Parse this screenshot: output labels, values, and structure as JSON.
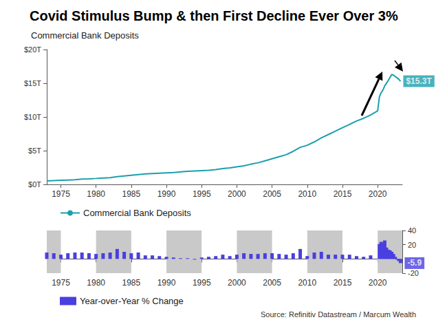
{
  "chart_data": [
    {
      "type": "line",
      "title": "Covid Stimulus Bump & then First Decline Ever Over 3%",
      "subtitle": "Commercial Bank Deposits",
      "x": [
        1973,
        1974,
        1975,
        1976,
        1977,
        1978,
        1979,
        1980,
        1981,
        1982,
        1983,
        1984,
        1985,
        1986,
        1987,
        1988,
        1989,
        1990,
        1991,
        1992,
        1993,
        1994,
        1995,
        1996,
        1997,
        1998,
        1999,
        2000,
        2001,
        2002,
        2003,
        2004,
        2005,
        2006,
        2007,
        2008,
        2009,
        2010,
        2011,
        2012,
        2013,
        2014,
        2015,
        2016,
        2017,
        2018,
        2019,
        2020,
        2020.25,
        2020.5,
        2020.75,
        2021,
        2021.5,
        2022,
        2022.25,
        2022.5,
        2022.75,
        2023,
        2023.25
      ],
      "series": [
        {
          "name": "Commercial Bank Deposits",
          "color": "#1a9fad",
          "values": [
            0.5,
            0.55,
            0.6,
            0.65,
            0.7,
            0.78,
            0.82,
            0.88,
            0.95,
            1.0,
            1.15,
            1.25,
            1.35,
            1.45,
            1.55,
            1.6,
            1.65,
            1.7,
            1.75,
            1.85,
            1.95,
            2.0,
            2.05,
            2.1,
            2.2,
            2.35,
            2.45,
            2.6,
            2.75,
            3.0,
            3.2,
            3.5,
            3.8,
            4.1,
            4.4,
            4.9,
            5.5,
            5.8,
            6.3,
            6.9,
            7.4,
            7.9,
            8.4,
            8.9,
            9.4,
            9.8,
            10.3,
            10.9,
            13.0,
            13.6,
            14.0,
            14.6,
            15.4,
            16.3,
            16.2,
            16.0,
            15.8,
            15.6,
            15.3
          ]
        }
      ],
      "xlim": [
        1973,
        2023.5
      ],
      "xticks": [
        1975,
        1980,
        1985,
        1990,
        1995,
        2000,
        2005,
        2010,
        2015,
        2020
      ],
      "ylim": [
        0,
        20
      ],
      "yticks": [
        {
          "value": 0,
          "label": "$0T"
        },
        {
          "value": 5,
          "label": "$5T"
        },
        {
          "value": 10,
          "label": "$10T"
        },
        {
          "value": 15,
          "label": "$15T"
        },
        {
          "value": 20,
          "label": "$20T"
        }
      ],
      "annotations": [
        {
          "text": "$15.3T",
          "x": 2023.25,
          "y": 15.3
        }
      ],
      "grid": false,
      "legend": "bottom-left"
    },
    {
      "type": "bar",
      "x": [
        1973,
        1974,
        1975,
        1976,
        1977,
        1978,
        1979,
        1980,
        1981,
        1982,
        1983,
        1984,
        1985,
        1986,
        1987,
        1988,
        1989,
        1990,
        1991,
        1992,
        1993,
        1994,
        1995,
        1996,
        1997,
        1998,
        1999,
        2000,
        2001,
        2002,
        2003,
        2004,
        2005,
        2006,
        2007,
        2008,
        2009,
        2010,
        2011,
        2012,
        2013,
        2014,
        2015,
        2016,
        2017,
        2018,
        2019,
        2020.25,
        2020.5,
        2020.75,
        2021,
        2021.25,
        2021.5,
        2021.75,
        2022,
        2022.25,
        2022.5,
        2022.75,
        2023,
        2023.25
      ],
      "series": [
        {
          "name": "Year-over-Year % Change",
          "color": "#4a3fe0",
          "values": [
            9,
            8,
            6,
            8,
            9,
            9,
            8,
            7,
            8,
            9,
            14,
            10,
            8,
            9,
            5,
            5,
            4,
            3,
            2,
            1,
            1,
            -1,
            2,
            3,
            4,
            6,
            4,
            6,
            8,
            7,
            7,
            8,
            8,
            7,
            6,
            8,
            14,
            4,
            9,
            10,
            6,
            6,
            6,
            6,
            4,
            3,
            5,
            21,
            24,
            22,
            26,
            16,
            13,
            12,
            10,
            7,
            3,
            -1,
            -3,
            -5.9
          ]
        }
      ],
      "xlim": [
        1973,
        2023.5
      ],
      "xticks": [
        1975,
        1980,
        1985,
        1990,
        1995,
        2000,
        2005,
        2010,
        2015,
        2020
      ],
      "ylim": [
        -20,
        40
      ],
      "yticks": [
        -20,
        20,
        40
      ],
      "annotations": [
        {
          "text": "-5.9",
          "x": 2023.25,
          "y": -5.9
        }
      ],
      "source": "Source: Refinitiv Datastream / Marcum Wealth",
      "grid": false,
      "legend": "bottom-left"
    }
  ]
}
